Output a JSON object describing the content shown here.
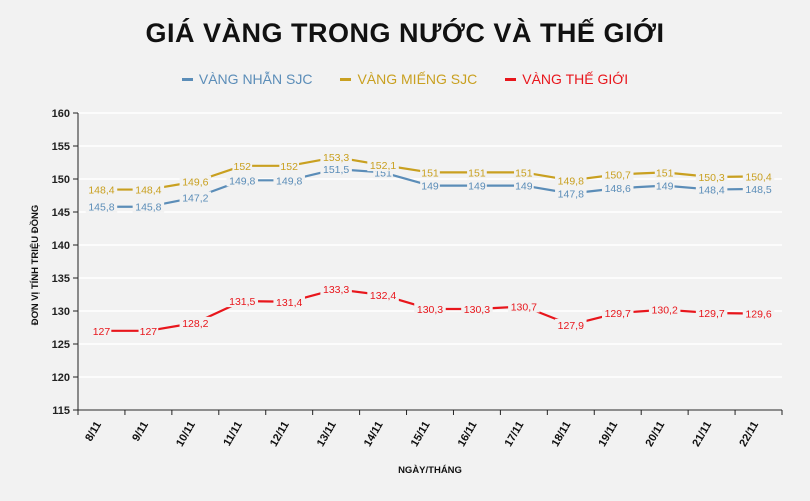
{
  "chart_data": {
    "type": "line",
    "title": "GIÁ VÀNG TRONG NƯỚC VÀ THẾ GIỚI",
    "xlabel": "NGÀY/THÁNG",
    "ylabel": "ĐƠN VỊ TÍNH TRIỆU ĐỒNG",
    "ylim": [
      115,
      160
    ],
    "yticks": [
      115,
      120,
      125,
      130,
      135,
      140,
      145,
      150,
      155,
      160
    ],
    "categories": [
      "8/11",
      "9/11",
      "10/11",
      "11/11",
      "12/11",
      "13/11",
      "14/11",
      "15/11",
      "16/11",
      "17/11",
      "18/11",
      "19/11",
      "20/11",
      "21/11",
      "22/11"
    ],
    "legend_position": "top",
    "grid": "horizontal",
    "series": [
      {
        "name": "VÀNG NHẪN SJC",
        "color": "#5b8db8",
        "values": [
          145.8,
          145.8,
          147.2,
          149.8,
          149.8,
          151.5,
          151,
          149,
          149,
          149,
          147.8,
          148.6,
          149,
          148.4,
          148.5
        ],
        "labels": [
          "145,8",
          "145,8",
          "147,2",
          "149,8",
          "149,8",
          "151,5",
          "151",
          "149",
          "149",
          "149",
          "147,8",
          "148,6",
          "149",
          "148,4",
          "148,5"
        ]
      },
      {
        "name": "VÀNG MIẾNG SJC",
        "color": "#c9a020",
        "values": [
          148.4,
          148.4,
          149.6,
          152,
          152,
          153.3,
          152.1,
          151,
          151,
          151,
          149.8,
          150.7,
          151,
          150.3,
          150.4
        ],
        "labels": [
          "148,4",
          "148,4",
          "149,6",
          "152",
          "152",
          "153,3",
          "152,1",
          "151",
          "151",
          "151",
          "149,8",
          "150,7",
          "151",
          "150,3",
          "150,4"
        ]
      },
      {
        "name": "VÀNG THẾ GIỚI",
        "color": "#e8161c",
        "values": [
          127,
          127,
          128.2,
          131.5,
          131.4,
          133.3,
          132.4,
          130.3,
          130.3,
          130.7,
          127.9,
          129.7,
          130.2,
          129.7,
          129.6
        ],
        "labels": [
          "127",
          "127",
          "128,2",
          "131,5",
          "131,4",
          "133,3",
          "132,4",
          "130,3",
          "130,3",
          "130,7",
          "127,9",
          "129,7",
          "130,2",
          "129,7",
          "129,6"
        ]
      }
    ]
  }
}
